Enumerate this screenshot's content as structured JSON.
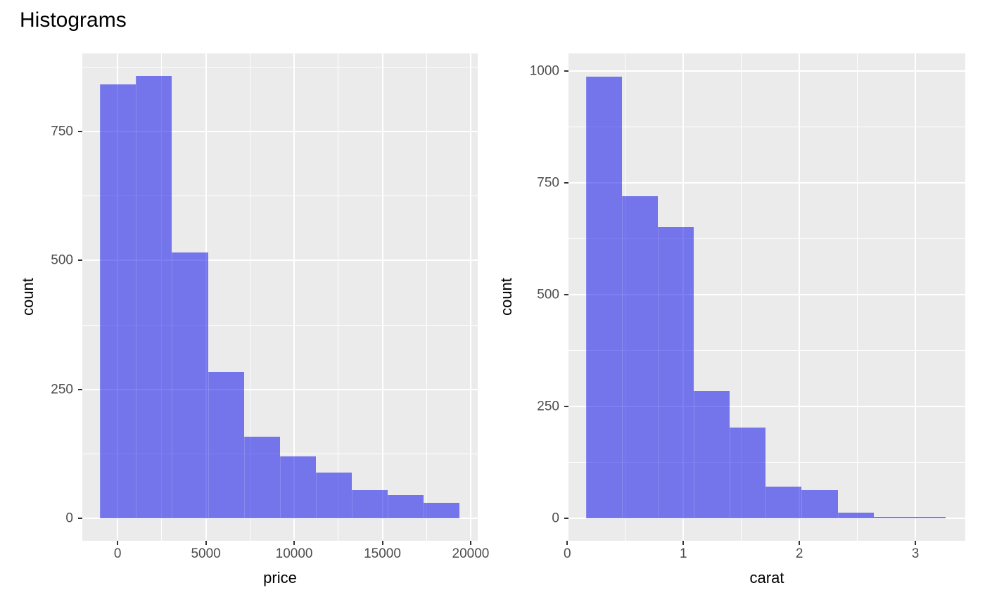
{
  "title": "Histograms",
  "colors": {
    "background": "#FFFFFF",
    "panel_background": "#EBEBEB",
    "gridline": "#FFFFFF",
    "bar_fill": "rgba(10,10,235,0.52)",
    "bar_fill_apparent": "#7676EB",
    "tick_label": "#4D4D4D",
    "tick_mark": "#333333",
    "text": "#000000"
  },
  "chart_data": [
    {
      "key": "price",
      "type": "bar",
      "subtype": "histogram",
      "title": "",
      "xlabel": "price",
      "ylabel": "count",
      "legend": "none",
      "grid": true,
      "x_ticks": [
        0,
        5000,
        10000,
        15000,
        20000
      ],
      "x_tick_labels": [
        "0",
        "5000",
        "10000",
        "15000",
        "20000"
      ],
      "y_ticks": [
        0,
        250,
        500,
        750
      ],
      "y_tick_labels": [
        "0",
        "250",
        "500",
        "750"
      ],
      "x_domain": [
        -2000,
        20400
      ],
      "y_domain": [
        -43,
        901
      ],
      "bin_edges": [
        -1000,
        1040,
        3080,
        5120,
        7150,
        9190,
        11230,
        13260,
        15300,
        17340,
        19380
      ],
      "counts": [
        841,
        857,
        516,
        284,
        158,
        120,
        89,
        55,
        46,
        30
      ]
    },
    {
      "key": "carat",
      "type": "bar",
      "subtype": "histogram",
      "title": "",
      "xlabel": "carat",
      "ylabel": "count",
      "legend": "none",
      "grid": true,
      "x_ticks": [
        0,
        1,
        2,
        3
      ],
      "x_tick_labels": [
        "0",
        "1",
        "2",
        "3"
      ],
      "y_ticks": [
        0,
        250,
        500,
        750,
        1000
      ],
      "y_tick_labels": [
        "0",
        "250",
        "500",
        "750",
        "1000"
      ],
      "x_domain": [
        0.01,
        3.43
      ],
      "y_domain": [
        -51,
        1040
      ],
      "bin_edges": [
        0.16,
        0.47,
        0.78,
        1.09,
        1.4,
        1.71,
        2.02,
        2.33,
        2.64,
        2.95,
        3.26
      ],
      "counts": [
        988,
        721,
        651,
        284,
        202,
        71,
        62,
        12,
        2,
        2
      ]
    }
  ]
}
